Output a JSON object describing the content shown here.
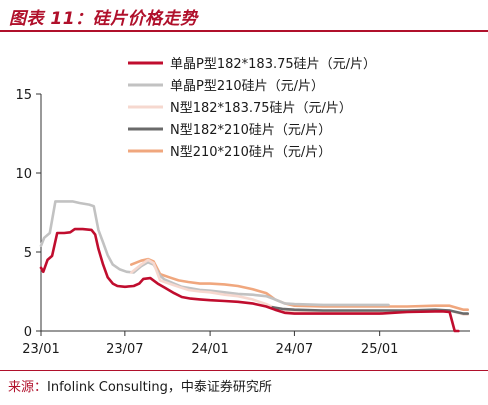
{
  "header": {
    "title": "图表 11：硅片价格走势"
  },
  "footer": {
    "source_lead": "来源：",
    "source_text": "Infolink Consulting，中泰证券研究所"
  },
  "colors": {
    "accent": "#b0102b",
    "series": [
      "#c00d2e",
      "#c2c2c2",
      "#f6d8cf",
      "#6a6a6a",
      "#f0a77e"
    ]
  },
  "chart_data": {
    "type": "line",
    "title": "图表 11：硅片价格走势",
    "xlabel": "",
    "ylabel": "",
    "xlim": [
      "2023-01-01",
      "2025-07-15"
    ],
    "ylim": [
      0,
      15
    ],
    "grid": false,
    "legend_position": "top-right",
    "x_ticks": [
      {
        "label": "23/01",
        "date": "2023-01-01"
      },
      {
        "label": "23/07",
        "date": "2023-07-01"
      },
      {
        "label": "24/01",
        "date": "2024-01-01"
      },
      {
        "label": "24/07",
        "date": "2024-07-01"
      },
      {
        "label": "25/01",
        "date": "2025-01-01"
      }
    ],
    "y_ticks": [
      0,
      5,
      10,
      15
    ],
    "series": [
      {
        "name": "单晶P型182*183.75硅片（元/片）",
        "color": "#c00d2e",
        "width": 2.6,
        "points": [
          [
            "2023-01-01",
            4.0
          ],
          [
            "2023-01-06",
            3.75
          ],
          [
            "2023-01-15",
            4.5
          ],
          [
            "2023-01-25",
            4.75
          ],
          [
            "2023-02-05",
            6.2
          ],
          [
            "2023-02-20",
            6.2
          ],
          [
            "2023-03-05",
            6.25
          ],
          [
            "2023-03-15",
            6.45
          ],
          [
            "2023-04-01",
            6.45
          ],
          [
            "2023-04-20",
            6.4
          ],
          [
            "2023-04-28",
            6.1
          ],
          [
            "2023-05-05",
            5.2
          ],
          [
            "2023-05-15",
            4.2
          ],
          [
            "2023-05-25",
            3.4
          ],
          [
            "2023-06-05",
            3.0
          ],
          [
            "2023-06-15",
            2.85
          ],
          [
            "2023-07-01",
            2.8
          ],
          [
            "2023-07-20",
            2.85
          ],
          [
            "2023-08-01",
            3.0
          ],
          [
            "2023-08-10",
            3.3
          ],
          [
            "2023-08-25",
            3.35
          ],
          [
            "2023-09-10",
            3.0
          ],
          [
            "2023-09-25",
            2.75
          ],
          [
            "2023-10-15",
            2.4
          ],
          [
            "2023-11-01",
            2.15
          ],
          [
            "2023-11-20",
            2.05
          ],
          [
            "2023-12-10",
            2.0
          ],
          [
            "2024-01-01",
            1.95
          ],
          [
            "2024-02-01",
            1.9
          ],
          [
            "2024-03-01",
            1.85
          ],
          [
            "2024-04-01",
            1.75
          ],
          [
            "2024-05-01",
            1.55
          ],
          [
            "2024-05-20",
            1.35
          ],
          [
            "2024-06-10",
            1.15
          ],
          [
            "2024-07-01",
            1.1
          ],
          [
            "2024-09-01",
            1.1
          ],
          [
            "2024-11-01",
            1.1
          ],
          [
            "2025-01-01",
            1.1
          ],
          [
            "2025-03-01",
            1.2
          ],
          [
            "2025-05-15",
            1.25
          ],
          [
            "2025-06-01",
            1.2
          ],
          [
            "2025-06-12",
            0.0
          ],
          [
            "2025-06-20",
            0.0
          ]
        ]
      },
      {
        "name": "单晶P型210硅片（元/片）",
        "color": "#c2c2c2",
        "width": 2.6,
        "points": [
          [
            "2023-01-01",
            5.4
          ],
          [
            "2023-01-08",
            5.9
          ],
          [
            "2023-01-20",
            6.2
          ],
          [
            "2023-02-01",
            8.2
          ],
          [
            "2023-02-15",
            8.2
          ],
          [
            "2023-03-10",
            8.2
          ],
          [
            "2023-03-25",
            8.1
          ],
          [
            "2023-04-15",
            8.0
          ],
          [
            "2023-04-25",
            7.9
          ],
          [
            "2023-05-05",
            6.4
          ],
          [
            "2023-05-15",
            5.6
          ],
          [
            "2023-05-25",
            4.8
          ],
          [
            "2023-06-05",
            4.2
          ],
          [
            "2023-06-20",
            3.9
          ],
          [
            "2023-07-05",
            3.75
          ],
          [
            "2023-07-20",
            3.7
          ],
          [
            "2023-08-05",
            4.1
          ],
          [
            "2023-08-20",
            4.35
          ],
          [
            "2023-09-01",
            4.2
          ],
          [
            "2023-09-15",
            3.5
          ],
          [
            "2023-09-25",
            3.25
          ],
          [
            "2023-10-15",
            3.0
          ],
          [
            "2023-11-01",
            2.8
          ],
          [
            "2023-11-20",
            2.7
          ],
          [
            "2023-12-10",
            2.6
          ],
          [
            "2024-01-01",
            2.55
          ],
          [
            "2024-02-01",
            2.45
          ],
          [
            "2024-03-01",
            2.35
          ],
          [
            "2024-04-01",
            2.3
          ],
          [
            "2024-05-01",
            2.2
          ],
          [
            "2024-05-20",
            2.0
          ],
          [
            "2024-06-10",
            1.75
          ],
          [
            "2024-07-01",
            1.7
          ],
          [
            "2024-09-01",
            1.65
          ],
          [
            "2024-11-01",
            1.65
          ],
          [
            "2025-01-01",
            1.65
          ],
          [
            "2025-01-20",
            1.65
          ]
        ]
      },
      {
        "name": "N型182*183.75硅片（元/片）",
        "color": "#f6d8cf",
        "width": 2.6,
        "points": [
          [
            "2023-07-15",
            3.7
          ],
          [
            "2023-08-05",
            4.2
          ],
          [
            "2023-08-20",
            4.5
          ],
          [
            "2023-09-01",
            4.3
          ],
          [
            "2023-09-15",
            3.2
          ],
          [
            "2023-10-05",
            3.0
          ],
          [
            "2023-10-25",
            2.8
          ],
          [
            "2023-11-15",
            2.6
          ],
          [
            "2023-12-10",
            2.5
          ],
          [
            "2024-01-01",
            2.45
          ],
          [
            "2024-02-01",
            2.3
          ],
          [
            "2024-03-01",
            2.2
          ],
          [
            "2024-04-01",
            2.0
          ],
          [
            "2024-05-01",
            1.7
          ],
          [
            "2024-05-20",
            1.45
          ],
          [
            "2024-06-10",
            1.25
          ],
          [
            "2024-07-01",
            1.2
          ],
          [
            "2024-09-01",
            1.15
          ],
          [
            "2024-11-01",
            1.15
          ],
          [
            "2025-01-01",
            1.15
          ],
          [
            "2025-03-01",
            1.2
          ],
          [
            "2025-05-01",
            1.3
          ],
          [
            "2025-06-01",
            1.3
          ],
          [
            "2025-07-01",
            1.05
          ],
          [
            "2025-07-10",
            1.05
          ]
        ]
      },
      {
        "name": "N型182*210硅片（元/片）",
        "color": "#6a6a6a",
        "width": 2.6,
        "points": [
          [
            "2024-05-15",
            1.5
          ],
          [
            "2024-06-05",
            1.4
          ],
          [
            "2024-07-01",
            1.35
          ],
          [
            "2024-09-01",
            1.3
          ],
          [
            "2024-11-01",
            1.3
          ],
          [
            "2025-01-01",
            1.3
          ],
          [
            "2025-03-01",
            1.3
          ],
          [
            "2025-05-01",
            1.35
          ],
          [
            "2025-06-01",
            1.3
          ],
          [
            "2025-07-01",
            1.1
          ],
          [
            "2025-07-10",
            1.1
          ]
        ]
      },
      {
        "name": "N型210*210硅片（元/片）",
        "color": "#f0a77e",
        "width": 2.6,
        "points": [
          [
            "2023-07-15",
            4.2
          ],
          [
            "2023-08-05",
            4.45
          ],
          [
            "2023-08-20",
            4.55
          ],
          [
            "2023-09-01",
            4.4
          ],
          [
            "2023-09-15",
            3.6
          ],
          [
            "2023-10-05",
            3.4
          ],
          [
            "2023-10-25",
            3.2
          ],
          [
            "2023-11-15",
            3.1
          ],
          [
            "2023-12-10",
            3.0
          ],
          [
            "2024-01-01",
            3.0
          ],
          [
            "2024-02-01",
            2.95
          ],
          [
            "2024-03-01",
            2.85
          ],
          [
            "2024-04-01",
            2.65
          ],
          [
            "2024-05-01",
            2.4
          ],
          [
            "2024-05-20",
            2.0
          ],
          [
            "2024-06-10",
            1.75
          ],
          [
            "2024-07-01",
            1.6
          ],
          [
            "2024-09-01",
            1.55
          ],
          [
            "2024-11-01",
            1.55
          ],
          [
            "2025-01-01",
            1.55
          ],
          [
            "2025-03-01",
            1.55
          ],
          [
            "2025-05-01",
            1.6
          ],
          [
            "2025-06-01",
            1.6
          ],
          [
            "2025-07-01",
            1.35
          ],
          [
            "2025-07-10",
            1.35
          ]
        ]
      }
    ]
  }
}
